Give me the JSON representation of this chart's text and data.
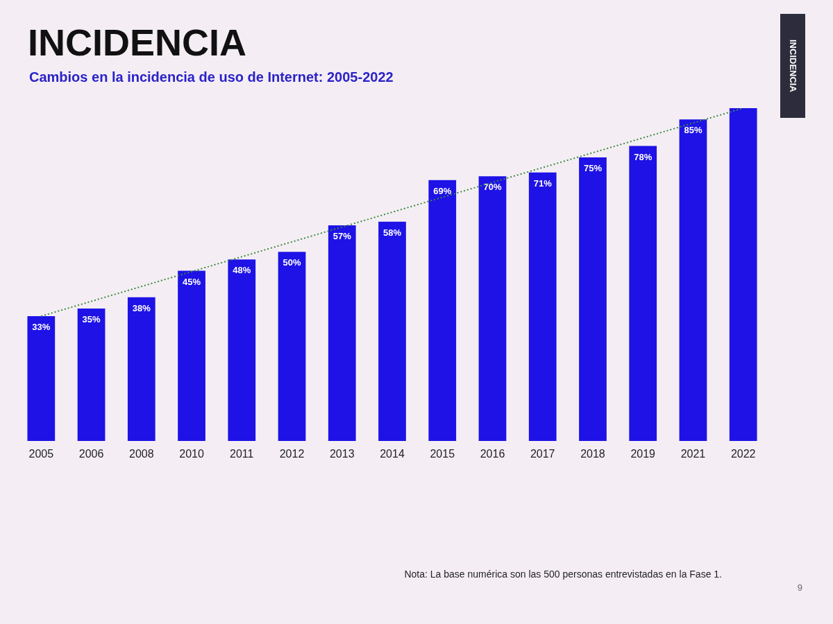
{
  "chart_data": {
    "type": "bar",
    "title": "INCIDENCIA",
    "subtitle": "Cambios en la incidencia de uso de Internet: 2005-2022",
    "categories": [
      "2005",
      "2006",
      "2008",
      "2010",
      "2011",
      "2012",
      "2013",
      "2014",
      "2015",
      "2016",
      "2017",
      "2018",
      "2019",
      "2021",
      "2022"
    ],
    "series": [
      {
        "color": "#1e12e6",
        "values": [
          33,
          35,
          38,
          45,
          48,
          50,
          57,
          58,
          69,
          70,
          71,
          75,
          78,
          85,
          88
        ],
        "value_labels": [
          "33%",
          "35%",
          "38%",
          "45%",
          "48%",
          "50%",
          "57%",
          "58%",
          "69%",
          "70%",
          "71%",
          "75%",
          "78%",
          "85%",
          null
        ]
      },
      {
        "type": "line",
        "color": "#3d8a3d",
        "line_style": "dotted",
        "values": [
          33,
          null,
          null,
          null,
          null,
          null,
          null,
          null,
          null,
          null,
          null,
          null,
          null,
          null,
          88
        ]
      }
    ],
    "tick_labels": "x",
    "annotations": [
      "INCIDENCIA",
      "Nota: La base numérica son las 500 personas entrevistadas en la Fase 1.",
      "9"
    ]
  }
}
